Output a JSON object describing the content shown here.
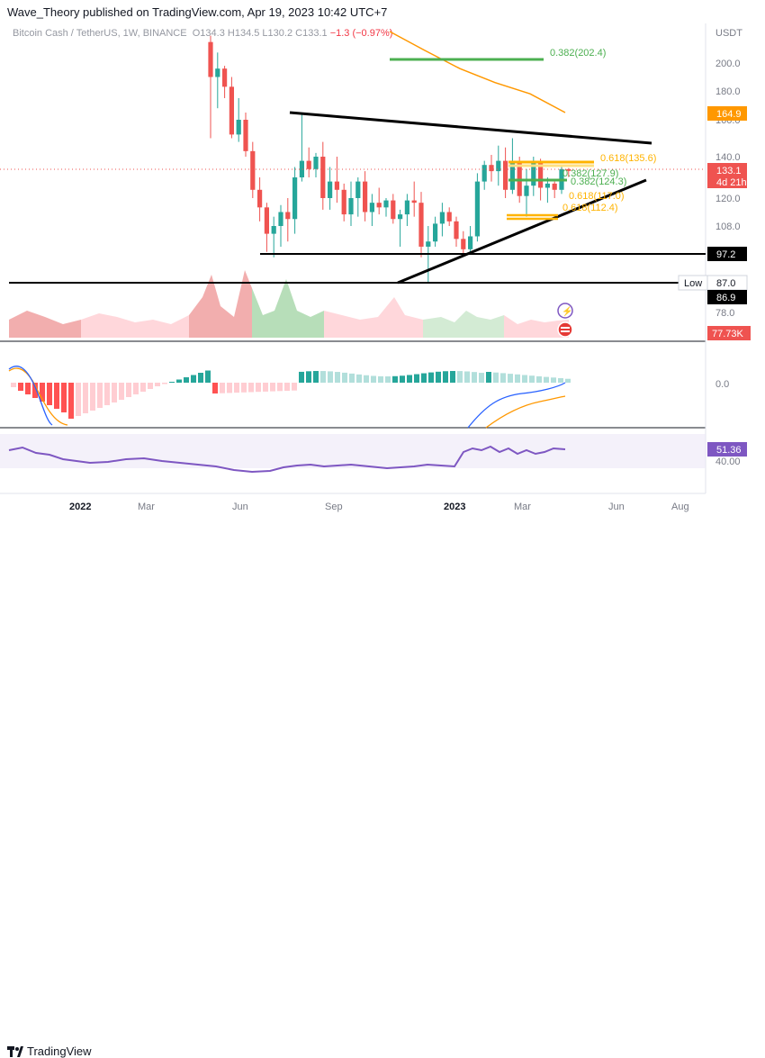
{
  "header": {
    "published": "Wave_Theory published on TradingView.com, Apr 19, 2023 10:42 UTC+7",
    "symbol": "Bitcoin Cash / TetherUS, 1W, BINANCE",
    "open_label": "O",
    "open": "134.3",
    "high_label": "H",
    "high": "134.5",
    "low_label": "L",
    "low": "130.2",
    "close_label": "C",
    "close": "133.1",
    "change": "−1.3 (−0.97%)"
  },
  "price_axis": {
    "currency": "USDT",
    "ticks": [
      "200.0",
      "180.0",
      "160.0",
      "140.0",
      "120.0",
      "108.0",
      "78.0"
    ],
    "last_price": "133.1",
    "countdown": "4d 21h",
    "ma_value": "164.9",
    "support_97": "97.2",
    "low_label": "Low",
    "low_value": "87.0",
    "support_86": "86.9",
    "volume": "77.73K"
  },
  "fib_labels": {
    "f202": "0.382(202.4)",
    "f135": "0.618(135.6)",
    "f127": "0.382(127.9)",
    "f124": "0.382(124.3)",
    "f117": "0.618(117.0)",
    "f112": "0.618(112.4)"
  },
  "macd_axis": {
    "zero": "0.0"
  },
  "rsi_axis": {
    "value": "51.36",
    "level": "40.00"
  },
  "time_axis": {
    "labels": [
      "2022",
      "Mar",
      "Jun",
      "Sep",
      "2023",
      "Mar",
      "Jun",
      "Aug"
    ]
  },
  "footer": {
    "brand": "TradingView"
  },
  "colors": {
    "up": "#26a69a",
    "down": "#ef5350",
    "fib_green": "#4caf50",
    "fib_yellow": "#ffb300",
    "ma": "#ff9800",
    "rsi": "#7e57c2"
  },
  "chart_data": {
    "type": "candlestick",
    "symbol": "Bitcoin Cash / TetherUS",
    "interval": "1W",
    "ylim": [
      70,
      215
    ],
    "candles": [
      {
        "o": 210,
        "h": 213,
        "l": 150,
        "c": 190
      },
      {
        "o": 190,
        "h": 205,
        "l": 168,
        "c": 196
      },
      {
        "o": 196,
        "h": 198,
        "l": 175,
        "c": 183
      },
      {
        "o": 183,
        "h": 190,
        "l": 150,
        "c": 152
      },
      {
        "o": 152,
        "h": 175,
        "l": 148,
        "c": 160
      },
      {
        "o": 160,
        "h": 165,
        "l": 140,
        "c": 143
      },
      {
        "o": 143,
        "h": 148,
        "l": 120,
        "c": 124
      },
      {
        "o": 124,
        "h": 130,
        "l": 110,
        "c": 116
      },
      {
        "o": 116,
        "h": 118,
        "l": 98,
        "c": 105
      },
      {
        "o": 105,
        "h": 112,
        "l": 96,
        "c": 108
      },
      {
        "o": 108,
        "h": 117,
        "l": 100,
        "c": 114
      },
      {
        "o": 114,
        "h": 120,
        "l": 102,
        "c": 111
      },
      {
        "o": 111,
        "h": 135,
        "l": 105,
        "c": 130
      },
      {
        "o": 130,
        "h": 164,
        "l": 128,
        "c": 138
      },
      {
        "o": 138,
        "h": 145,
        "l": 130,
        "c": 134
      },
      {
        "o": 134,
        "h": 142,
        "l": 130,
        "c": 140
      },
      {
        "o": 140,
        "h": 148,
        "l": 115,
        "c": 120
      },
      {
        "o": 120,
        "h": 135,
        "l": 115,
        "c": 128
      },
      {
        "o": 128,
        "h": 140,
        "l": 118,
        "c": 124
      },
      {
        "o": 124,
        "h": 127,
        "l": 110,
        "c": 113
      },
      {
        "o": 113,
        "h": 128,
        "l": 108,
        "c": 120
      },
      {
        "o": 120,
        "h": 130,
        "l": 112,
        "c": 128
      },
      {
        "o": 128,
        "h": 133,
        "l": 110,
        "c": 114
      },
      {
        "o": 114,
        "h": 122,
        "l": 108,
        "c": 118
      },
      {
        "o": 118,
        "h": 125,
        "l": 113,
        "c": 116
      },
      {
        "o": 116,
        "h": 120,
        "l": 112,
        "c": 119
      },
      {
        "o": 119,
        "h": 122,
        "l": 109,
        "c": 111
      },
      {
        "o": 111,
        "h": 115,
        "l": 100,
        "c": 113
      },
      {
        "o": 113,
        "h": 122,
        "l": 108,
        "c": 119
      },
      {
        "o": 119,
        "h": 128,
        "l": 112,
        "c": 118
      },
      {
        "o": 118,
        "h": 123,
        "l": 96,
        "c": 100
      },
      {
        "o": 100,
        "h": 108,
        "l": 87,
        "c": 102
      },
      {
        "o": 102,
        "h": 112,
        "l": 100,
        "c": 109
      },
      {
        "o": 109,
        "h": 118,
        "l": 104,
        "c": 114
      },
      {
        "o": 114,
        "h": 116,
        "l": 108,
        "c": 110
      },
      {
        "o": 110,
        "h": 112,
        "l": 100,
        "c": 103
      },
      {
        "o": 103,
        "h": 106,
        "l": 97,
        "c": 99
      },
      {
        "o": 99,
        "h": 108,
        "l": 97,
        "c": 104
      },
      {
        "o": 104,
        "h": 132,
        "l": 102,
        "c": 128
      },
      {
        "o": 128,
        "h": 138,
        "l": 124,
        "c": 136
      },
      {
        "o": 136,
        "h": 141,
        "l": 128,
        "c": 133
      },
      {
        "o": 133,
        "h": 146,
        "l": 126,
        "c": 138
      },
      {
        "o": 138,
        "h": 145,
        "l": 120,
        "c": 124
      },
      {
        "o": 124,
        "h": 150,
        "l": 122,
        "c": 138
      },
      {
        "o": 138,
        "h": 140,
        "l": 118,
        "c": 121
      },
      {
        "o": 121,
        "h": 134,
        "l": 112,
        "c": 126
      },
      {
        "o": 126,
        "h": 140,
        "l": 121,
        "c": 138
      },
      {
        "o": 138,
        "h": 139,
        "l": 119,
        "c": 125
      },
      {
        "o": 125,
        "h": 130,
        "l": 118,
        "c": 127
      },
      {
        "o": 127,
        "h": 128,
        "l": 120,
        "c": 124
      },
      {
        "o": 124,
        "h": 136,
        "l": 122,
        "c": 134
      },
      {
        "o": 134,
        "h": 134.5,
        "l": 130.2,
        "c": 133.1
      }
    ],
    "ma": [
      {
        "i": 0,
        "v": 215
      },
      {
        "i": 10,
        "v": 206
      },
      {
        "i": 20,
        "v": 196
      },
      {
        "i": 30,
        "v": 186
      },
      {
        "i": 40,
        "v": 178
      },
      {
        "i": 50,
        "v": 165
      }
    ],
    "support_levels": [
      97.2,
      86.9
    ],
    "fib_levels": [
      202.4,
      135.6,
      127.9,
      124.3,
      117.0,
      112.4
    ]
  }
}
